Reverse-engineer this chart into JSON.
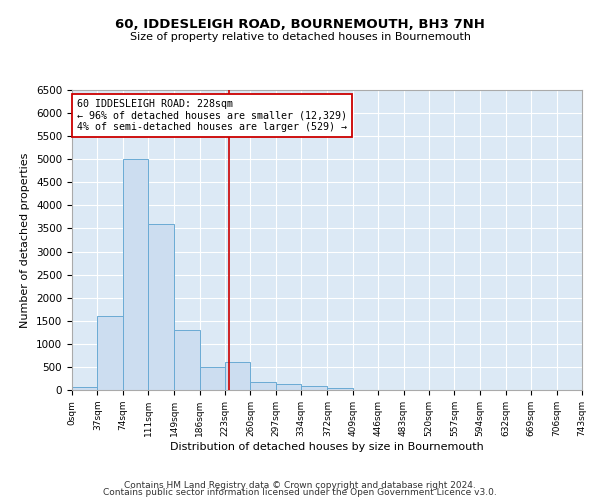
{
  "title": "60, IDDESLEIGH ROAD, BOURNEMOUTH, BH3 7NH",
  "subtitle": "Size of property relative to detached houses in Bournemouth",
  "xlabel": "Distribution of detached houses by size in Bournemouth",
  "ylabel": "Number of detached properties",
  "bar_color": "#ccddf0",
  "bar_edge_color": "#6aaad4",
  "background_color": "#dce9f5",
  "vline_x": 228,
  "vline_color": "#cc0000",
  "annotation_text": "60 IDDESLEIGH ROAD: 228sqm\n← 96% of detached houses are smaller (12,329)\n4% of semi-detached houses are larger (529) →",
  "annotation_box_color": "white",
  "annotation_box_edge": "#cc0000",
  "bin_edges": [
    0,
    37,
    74,
    111,
    149,
    186,
    223,
    260,
    297,
    334,
    372,
    409,
    446,
    483,
    520,
    557,
    594,
    632,
    669,
    706,
    743
  ],
  "bin_counts": [
    55,
    1600,
    5000,
    3600,
    1300,
    500,
    600,
    170,
    120,
    80,
    50,
    0,
    0,
    0,
    0,
    0,
    0,
    0,
    0,
    0
  ],
  "ylim": [
    0,
    6500
  ],
  "yticks": [
    0,
    500,
    1000,
    1500,
    2000,
    2500,
    3000,
    3500,
    4000,
    4500,
    5000,
    5500,
    6000,
    6500
  ],
  "footer_line1": "Contains HM Land Registry data © Crown copyright and database right 2024.",
  "footer_line2": "Contains public sector information licensed under the Open Government Licence v3.0."
}
